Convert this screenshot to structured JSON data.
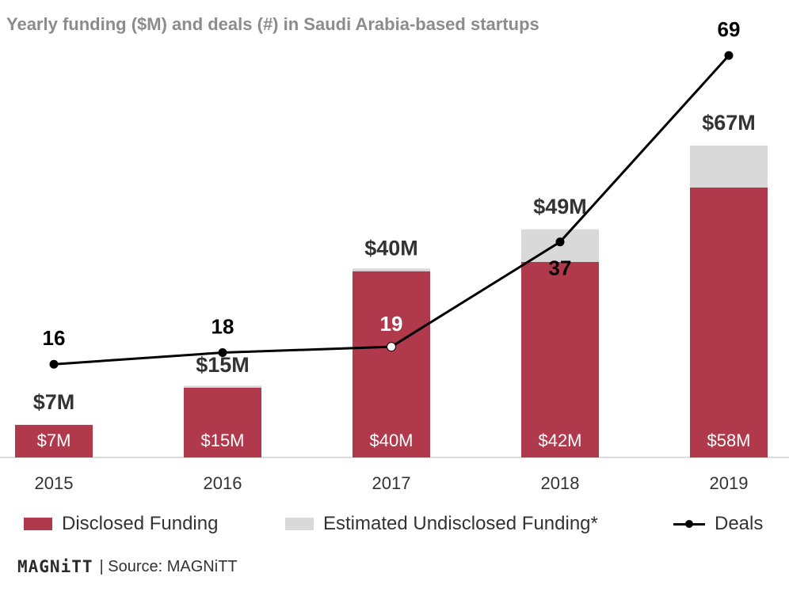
{
  "title": "Yearly funding ($M) and deals (#) in Saudi Arabia-based startups",
  "colors": {
    "disclosed": "#b03a4c",
    "undisclosed": "#d9d9d9",
    "deals": "#000000",
    "axis": "#d0d0d0",
    "text": "#333333"
  },
  "chart_data": {
    "type": "bar",
    "categories": [
      "2015",
      "2016",
      "2017",
      "2018",
      "2019"
    ],
    "series": [
      {
        "name": "Disclosed Funding",
        "kind": "stacked-bar",
        "values": [
          7,
          15,
          40,
          42,
          58
        ],
        "labels": [
          "$7M",
          "$15M",
          "$40M",
          "$42M",
          "$58M"
        ]
      },
      {
        "name": "Estimated Undisclosed Funding*",
        "kind": "stacked-bar",
        "values": [
          0,
          0.4,
          0.6,
          7,
          9
        ]
      },
      {
        "name": "Deals",
        "kind": "line",
        "axis": "secondary",
        "values": [
          16,
          18,
          19,
          37,
          69
        ],
        "labels": [
          "16",
          "18",
          "19",
          "37",
          "69"
        ]
      }
    ],
    "totals": [
      7,
      15,
      40,
      49,
      67
    ],
    "total_labels": [
      "$7M",
      "$15M",
      "$40M",
      "$49M",
      "$67M"
    ],
    "ylim": [
      0,
      68
    ],
    "y2lim": [
      0,
      75
    ],
    "grid": false,
    "legend_position": "bottom"
  },
  "legend": [
    {
      "label": "Disclosed Funding",
      "swatch": "disclosed"
    },
    {
      "label": "Estimated Undisclosed Funding*",
      "swatch": "undisclosed"
    },
    {
      "label": "Deals",
      "swatch": "line"
    }
  ],
  "footer": {
    "brand": "MAGNiTT",
    "source": "| Source: MAGNiTT"
  }
}
